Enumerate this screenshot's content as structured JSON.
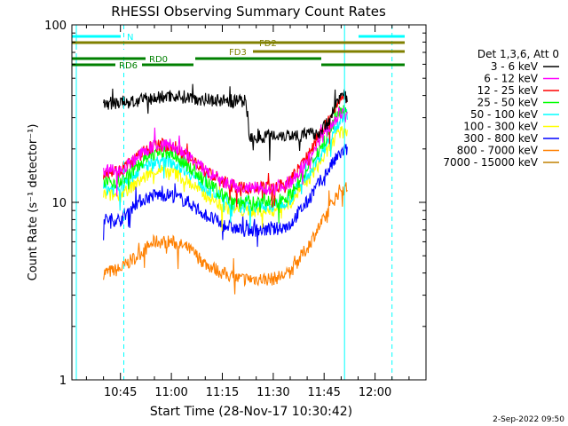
{
  "chart_data": {
    "type": "line",
    "title": "RHESSI Observing Summary Count Rates",
    "xlabel": "Start Time (28-Nov-17 10:30:42)",
    "ylabel": "Count Rate (s⁻¹ detector⁻¹)",
    "yscale": "log",
    "ylim": [
      1,
      100
    ],
    "xlim_minutes": [
      30.7,
      135
    ],
    "x_ticks": [
      {
        "t": 45,
        "label": "10:45"
      },
      {
        "t": 60,
        "label": "11:00"
      },
      {
        "t": 75,
        "label": "11:15"
      },
      {
        "t": 90,
        "label": "11:30"
      },
      {
        "t": 105,
        "label": "11:45"
      },
      {
        "t": 120,
        "label": "12:00"
      }
    ],
    "y_ticks": [
      {
        "v": 1,
        "label": "1"
      },
      {
        "v": 10,
        "label": "10"
      },
      {
        "v": 100,
        "label": "100"
      }
    ],
    "legend_title": "Det 1,3,6, Att 0",
    "legend_position": "right",
    "series": [
      {
        "name": "3 - 6 keV",
        "color": "#000000",
        "points": [
          [
            40,
            36
          ],
          [
            50,
            37
          ],
          [
            60,
            40
          ],
          [
            70,
            38
          ],
          [
            80,
            37
          ],
          [
            82,
            37
          ],
          [
            83,
            23
          ],
          [
            90,
            24
          ],
          [
            100,
            24
          ],
          [
            104,
            25
          ],
          [
            106,
            28
          ],
          [
            108,
            34
          ],
          [
            110,
            40
          ],
          [
            111,
            42
          ],
          [
            112,
            36
          ]
        ]
      },
      {
        "name": "6 - 12 keV",
        "color": "#ff00ff",
        "points": [
          [
            40,
            15
          ],
          [
            45,
            15
          ],
          [
            50,
            18
          ],
          [
            55,
            21
          ],
          [
            60,
            21
          ],
          [
            65,
            18
          ],
          [
            70,
            15
          ],
          [
            75,
            13
          ],
          [
            80,
            12
          ],
          [
            85,
            12
          ],
          [
            90,
            12
          ],
          [
            95,
            13
          ],
          [
            100,
            17
          ],
          [
            105,
            24
          ],
          [
            110,
            32
          ],
          [
            112,
            30
          ]
        ]
      },
      {
        "name": "12 - 25 keV",
        "color": "#ff0000",
        "points": [
          [
            40,
            15
          ],
          [
            45,
            15
          ],
          [
            50,
            18
          ],
          [
            55,
            21
          ],
          [
            60,
            21
          ],
          [
            65,
            18
          ],
          [
            70,
            15
          ],
          [
            75,
            13
          ],
          [
            80,
            12
          ],
          [
            85,
            12
          ],
          [
            90,
            12
          ],
          [
            95,
            13
          ],
          [
            100,
            18
          ],
          [
            105,
            26
          ],
          [
            110,
            38
          ],
          [
            112,
            40
          ]
        ]
      },
      {
        "name": "25 - 50 keV",
        "color": "#00ff00",
        "points": [
          [
            40,
            13
          ],
          [
            45,
            13
          ],
          [
            50,
            16
          ],
          [
            55,
            19
          ],
          [
            60,
            19
          ],
          [
            65,
            16
          ],
          [
            70,
            13
          ],
          [
            75,
            11
          ],
          [
            80,
            10
          ],
          [
            85,
            10
          ],
          [
            90,
            10
          ],
          [
            95,
            11
          ],
          [
            100,
            15
          ],
          [
            105,
            22
          ],
          [
            110,
            33
          ],
          [
            112,
            34
          ]
        ]
      },
      {
        "name": "50 - 100 keV",
        "color": "#00ffff",
        "points": [
          [
            40,
            12
          ],
          [
            45,
            12
          ],
          [
            50,
            15
          ],
          [
            55,
            17
          ],
          [
            60,
            17
          ],
          [
            65,
            15
          ],
          [
            70,
            12
          ],
          [
            75,
            10.5
          ],
          [
            80,
            9.5
          ],
          [
            85,
            9.5
          ],
          [
            90,
            9.5
          ],
          [
            95,
            10.5
          ],
          [
            100,
            14
          ],
          [
            105,
            20
          ],
          [
            110,
            30
          ],
          [
            112,
            32
          ]
        ]
      },
      {
        "name": "100 - 300 keV",
        "color": "#ffff00",
        "points": [
          [
            40,
            11
          ],
          [
            45,
            11
          ],
          [
            50,
            13
          ],
          [
            55,
            15
          ],
          [
            60,
            15
          ],
          [
            65,
            13
          ],
          [
            70,
            11
          ],
          [
            75,
            9.5
          ],
          [
            80,
            9
          ],
          [
            85,
            9
          ],
          [
            90,
            9
          ],
          [
            95,
            10
          ],
          [
            100,
            13
          ],
          [
            105,
            18
          ],
          [
            110,
            25
          ],
          [
            112,
            26
          ]
        ]
      },
      {
        "name": "300 - 800 keV",
        "color": "#0000ff",
        "points": [
          [
            40,
            8
          ],
          [
            45,
            8
          ],
          [
            50,
            10
          ],
          [
            55,
            11
          ],
          [
            60,
            11
          ],
          [
            65,
            10
          ],
          [
            70,
            8.5
          ],
          [
            75,
            7.5
          ],
          [
            80,
            7
          ],
          [
            85,
            7
          ],
          [
            90,
            7
          ],
          [
            95,
            7.5
          ],
          [
            100,
            10
          ],
          [
            105,
            14
          ],
          [
            110,
            19
          ],
          [
            112,
            20
          ]
        ]
      },
      {
        "name": "800 - 7000 keV",
        "color": "#ff8000",
        "points": [
          [
            40,
            4
          ],
          [
            45,
            4.2
          ],
          [
            50,
            5
          ],
          [
            55,
            6
          ],
          [
            60,
            6
          ],
          [
            65,
            5.5
          ],
          [
            70,
            4.5
          ],
          [
            75,
            4
          ],
          [
            80,
            3.7
          ],
          [
            85,
            3.7
          ],
          [
            90,
            3.7
          ],
          [
            95,
            4
          ],
          [
            100,
            5.5
          ],
          [
            105,
            8
          ],
          [
            110,
            12
          ],
          [
            112,
            12
          ]
        ]
      },
      {
        "name": "7000 - 15000 keV",
        "color": "#c08000",
        "points": []
      }
    ],
    "flag_bars": [
      {
        "label": "N",
        "color": "#00ffff"
      },
      {
        "label": "FD2",
        "color": "#808000"
      },
      {
        "label": "FD3",
        "color": "#808000"
      },
      {
        "label": "RD0",
        "color": "#008000"
      },
      {
        "label": "RD6",
        "color": "#008000"
      }
    ],
    "vertical_markers": [
      {
        "t": 32,
        "color": "#00ffff",
        "style": "solid"
      },
      {
        "t": 46,
        "color": "#00ffff",
        "style": "dashed"
      },
      {
        "t": 111,
        "color": "#00ffff",
        "style": "solid"
      },
      {
        "t": 125,
        "color": "#00ffff",
        "style": "dashed"
      }
    ]
  },
  "footer": {
    "timestamp": "2-Sep-2022 09:50"
  }
}
